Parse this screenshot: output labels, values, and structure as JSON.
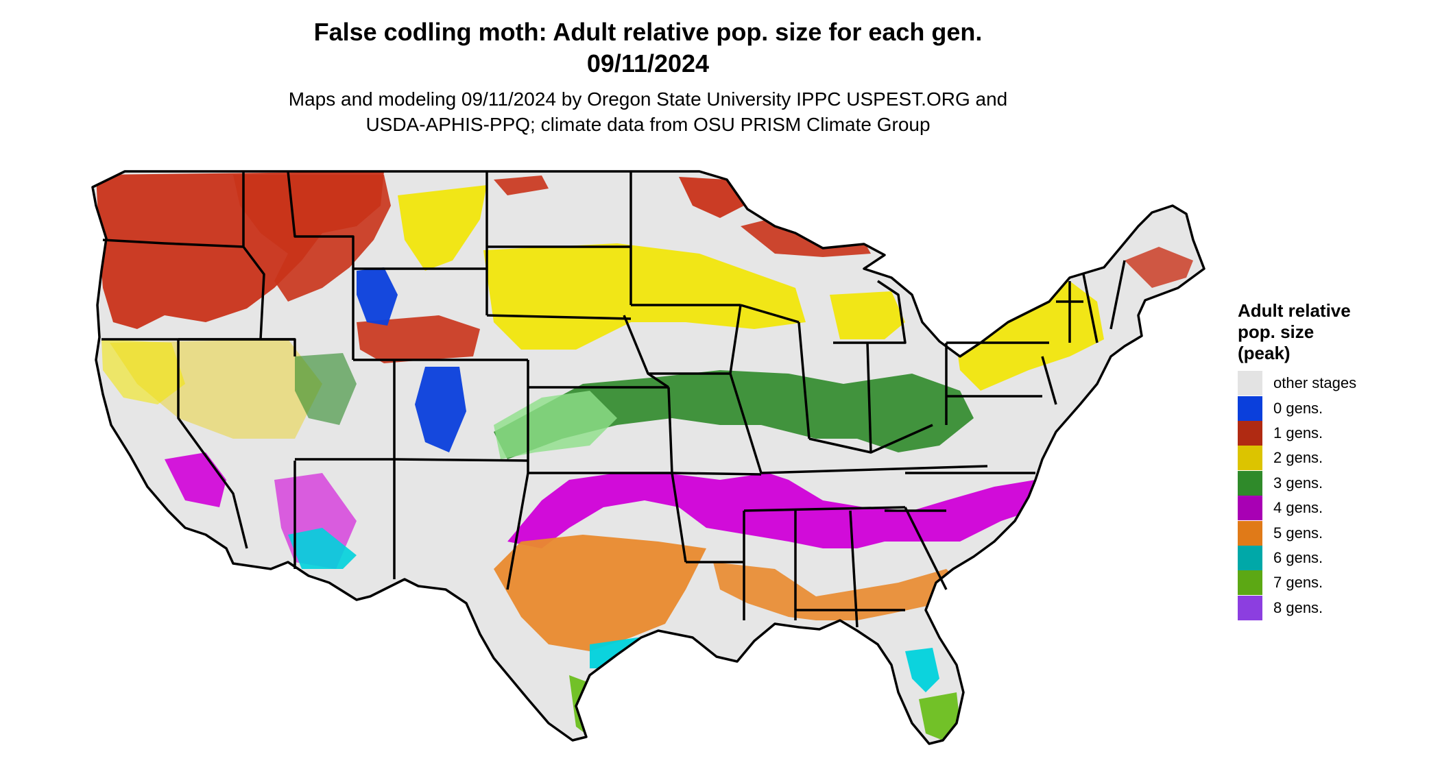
{
  "title_line1": "False codling moth: Adult relative pop. size for each gen.",
  "title_line2": "09/11/2024",
  "subtitle_line1": "Maps and modeling 09/11/2024 by Oregon State University IPPC USPEST.ORG and",
  "subtitle_line2": "USDA-APHIS-PPQ; climate data from OSU PRISM Climate Group",
  "legend": {
    "title_line1": "Adult relative",
    "title_line2": "pop. size",
    "title_line3": "(peak)",
    "items": [
      {
        "label": "other stages",
        "color": "#e3e3e3"
      },
      {
        "label": "0 gens.",
        "color": "#0a3fdc"
      },
      {
        "label": "1 gens.",
        "color": "#b02a12"
      },
      {
        "label": "2 gens.",
        "color": "#dcc400"
      },
      {
        "label": "3 gens.",
        "color": "#2f8a2a"
      },
      {
        "label": "4 gens.",
        "color": "#a800b4"
      },
      {
        "label": "5 gens.",
        "color": "#e07a18"
      },
      {
        "label": "6 gens.",
        "color": "#00a8a8"
      },
      {
        "label": "7 gens.",
        "color": "#5ca814"
      },
      {
        "label": "8 gens.",
        "color": "#8c3ee0"
      }
    ]
  },
  "map": {
    "background_color": "#e6e6e6",
    "border_color": "#000000",
    "zone_colors": {
      "gen1": "#c9331a",
      "gen2": "#f2e500",
      "gen2_light": "#e8d86a",
      "gen0": "#0a3fdc",
      "gen3": "#2f8a2a",
      "gen3_light": "#8ee08a",
      "gen4": "#d000d8",
      "gen5": "#e98a2e",
      "gen6": "#00d2dc",
      "gen7": "#6cbf1e",
      "gen8": "#8c3ee0"
    }
  }
}
